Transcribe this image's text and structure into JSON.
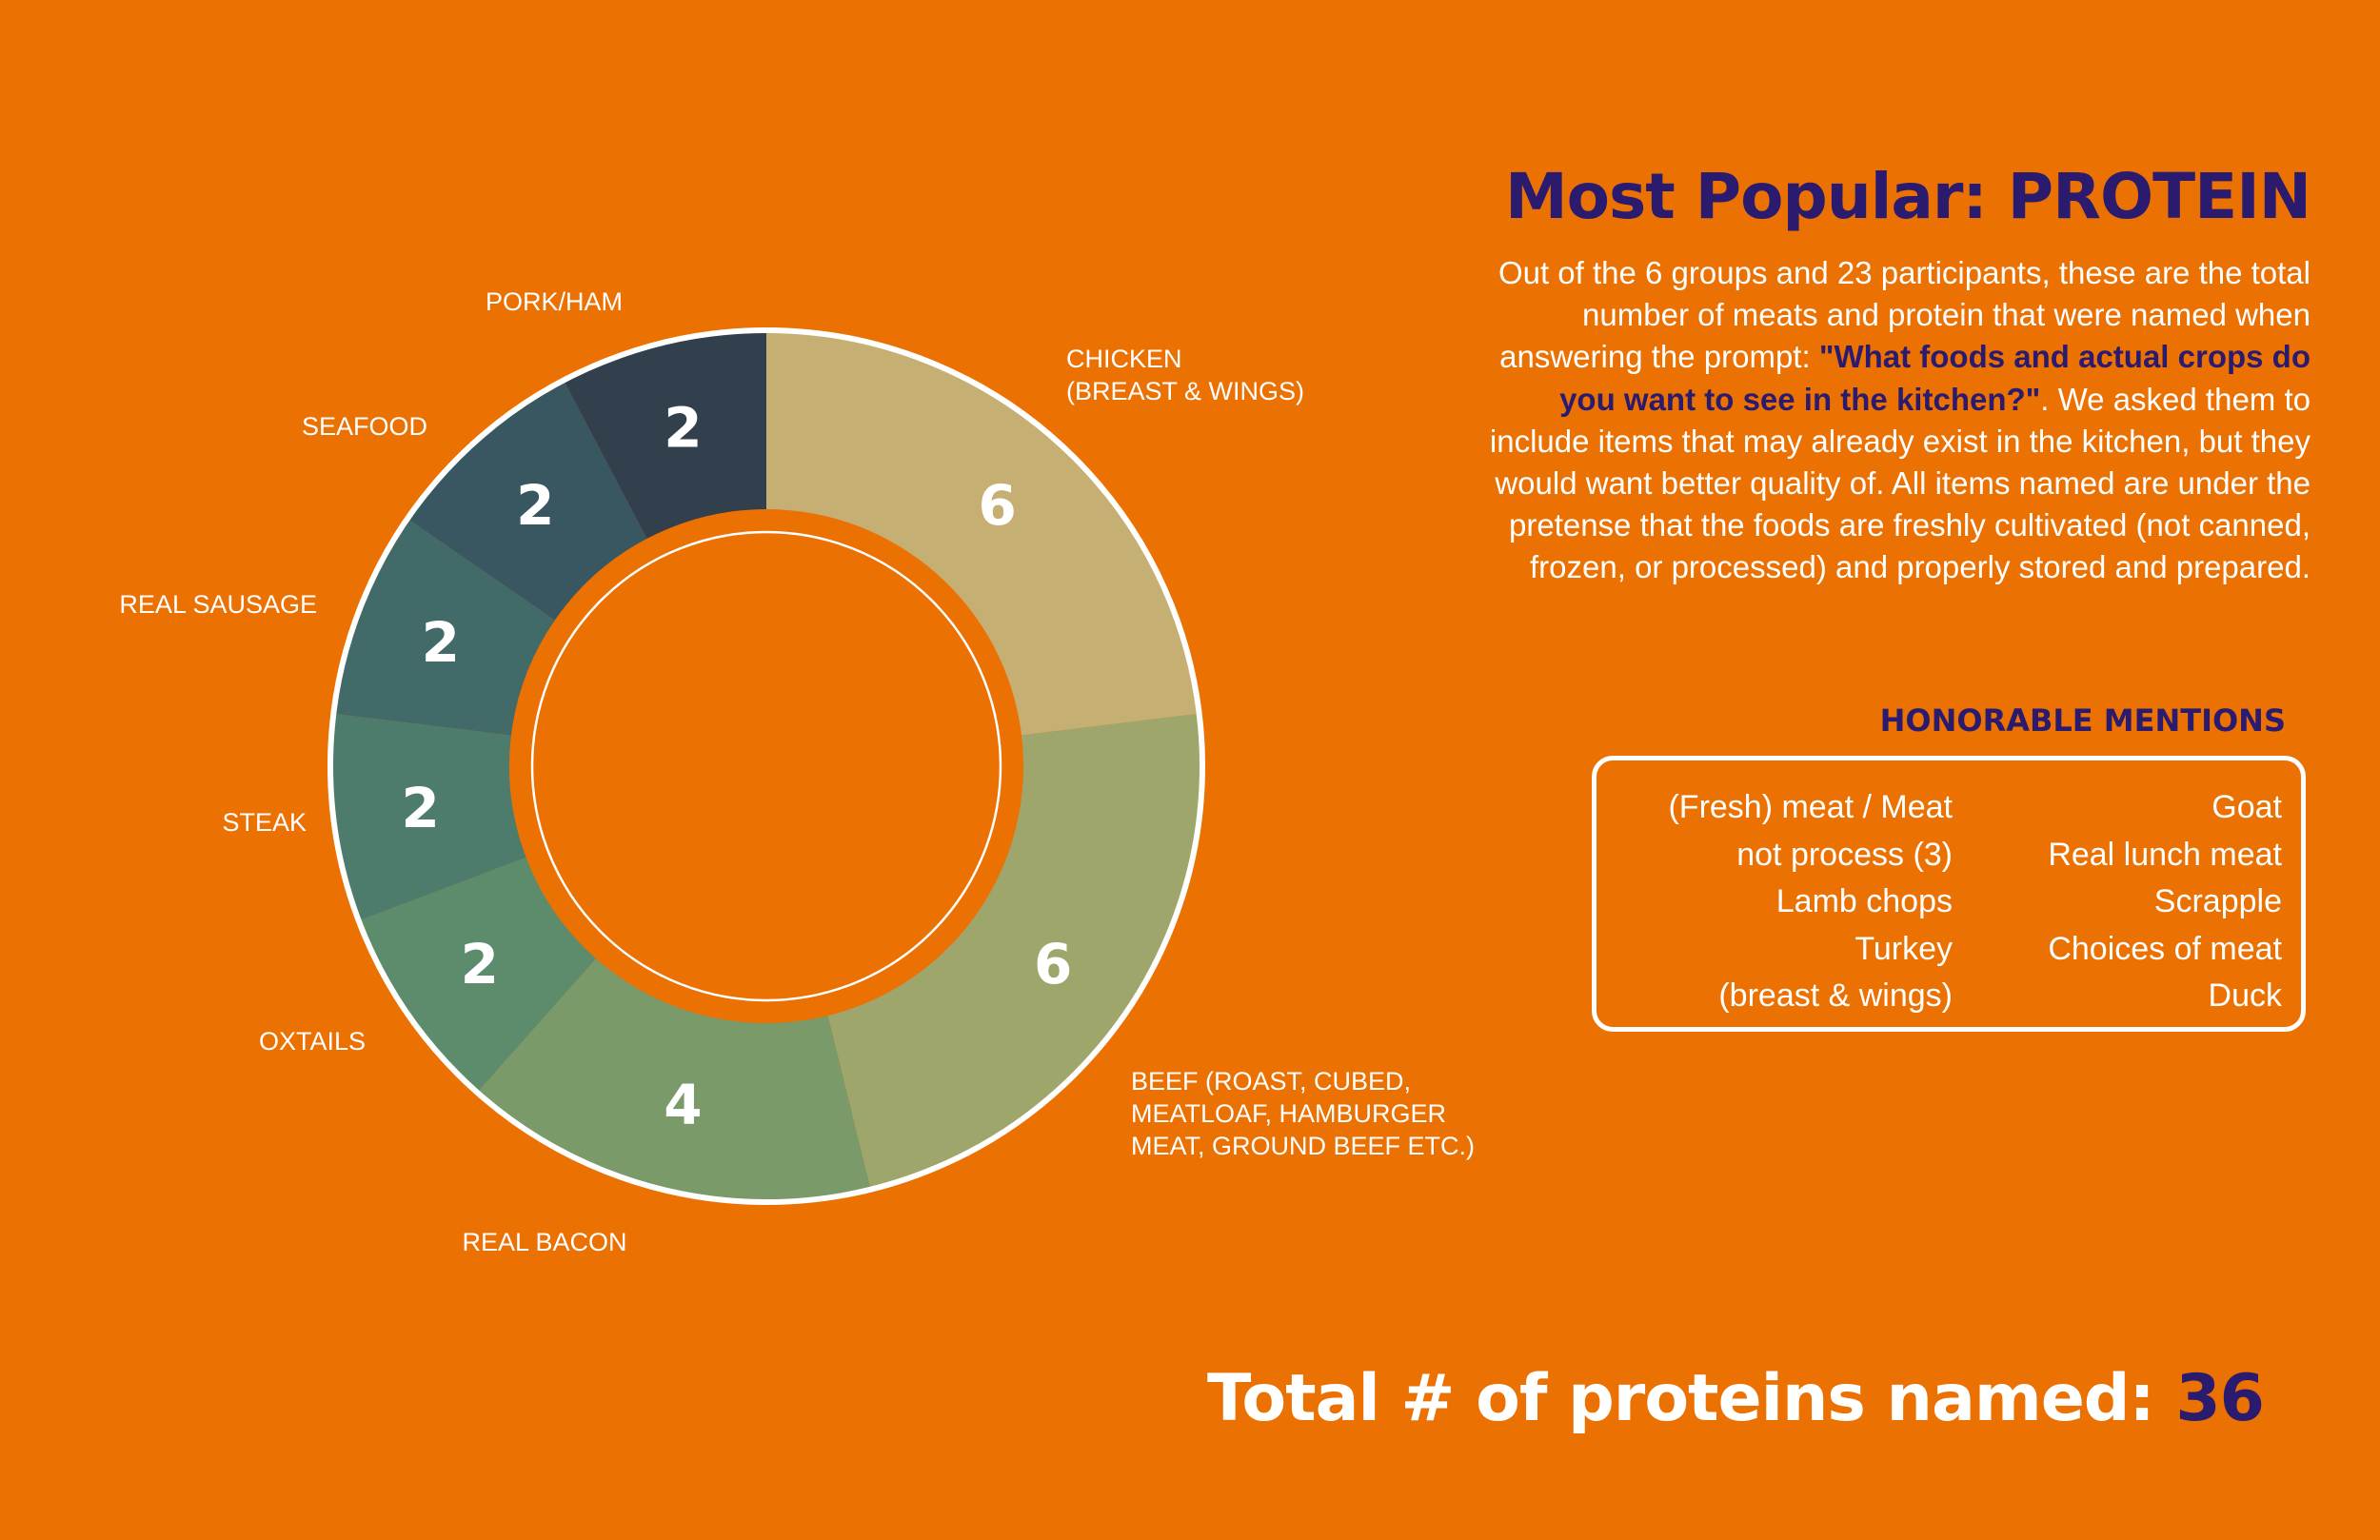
{
  "chart_data": {
    "type": "donut",
    "title": "Most Popular: PROTEIN",
    "categories": [
      "CHICKEN\n(BREAST & WINGS)",
      "BEEF (ROAST, CUBED,\nMEATLOAF, HAMBURGER\nMEAT, GROUND BEEF ETC.)",
      "REAL BACON",
      "OXTAILS",
      "STEAK",
      "REAL SAUSAGE",
      "SEAFOOD",
      "PORK/HAM"
    ],
    "values": [
      6,
      6,
      4,
      2,
      2,
      2,
      2,
      2
    ],
    "colors": [
      "#C5AF73",
      "#9EA66C",
      "#7A9A6A",
      "#5D8C6C",
      "#4D7C6C",
      "#426A68",
      "#385760",
      "#323F4C"
    ],
    "total": 36
  },
  "description": {
    "text_before": "Out of the 6 groups and 23 participants, these are the total number of meats and protein that were named when answering the prompt: ",
    "highlight": "\"What foods and actual crops do you want to see in the kitchen?\"",
    "text_after": ". We asked them to include items that may already exist in the kitchen, but they would want better quality of. All items named are under the pretense that the foods are freshly cultivated (not canned, frozen, or processed) and properly stored and prepared."
  },
  "honorable_mentions": {
    "title": "HONORABLE MENTIONS",
    "left_lines": [
      "(Fresh) meat / Meat",
      "not process (3)",
      "Lamb chops",
      "Turkey",
      "(breast & wings)"
    ],
    "right_lines": [
      "Goat",
      "Real lunch meat",
      "Scrapple",
      "Choices of meat",
      "Duck"
    ]
  },
  "footer": {
    "total_label": "Total # of proteins named: ",
    "total_value": "36"
  },
  "colors": {
    "background": "#EC7103",
    "title": "#2A1B6E",
    "text": "#FFFFFF"
  }
}
